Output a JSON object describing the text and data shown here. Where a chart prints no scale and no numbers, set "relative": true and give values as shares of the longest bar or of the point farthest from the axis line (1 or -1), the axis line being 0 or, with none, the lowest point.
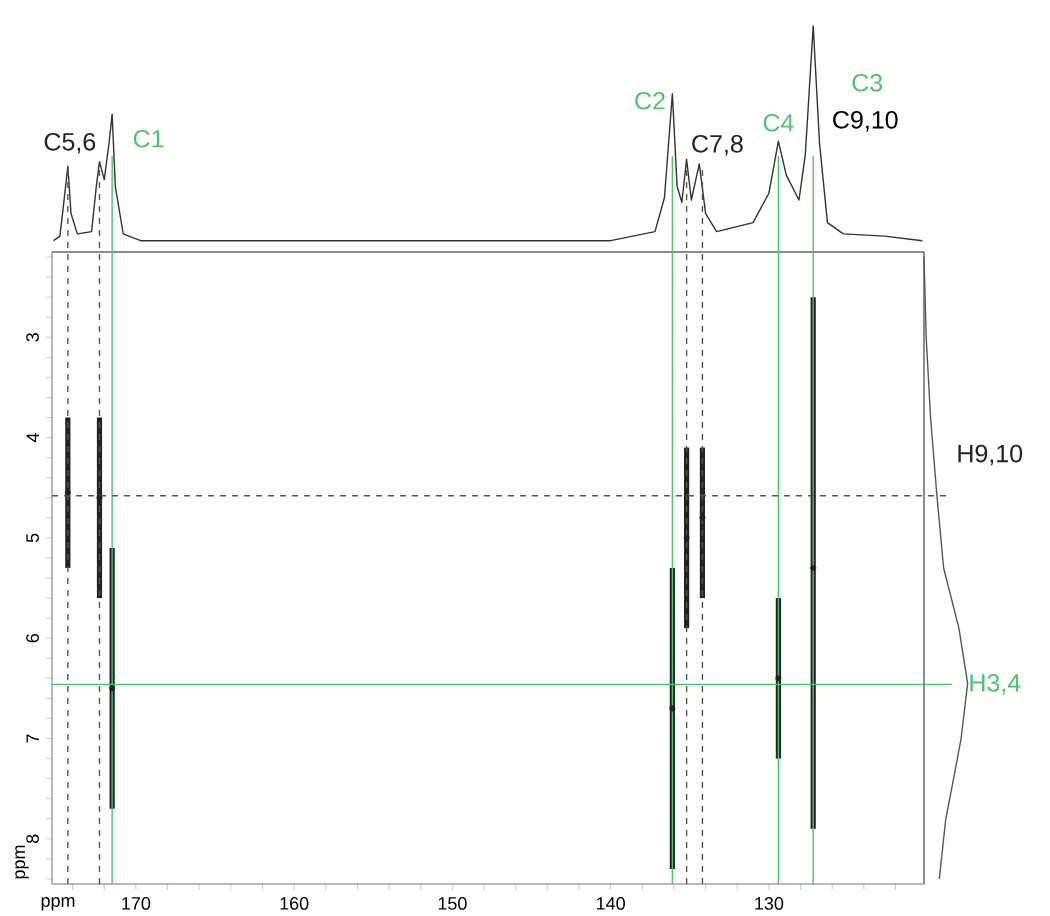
{
  "chart_data": [
    {
      "type": "line",
      "relative": true,
      "color": "#333333",
      "xlim": [
        175.3,
        120.2
      ],
      "tick_labels": false,
      "x": [
        175.2,
        174.8,
        174.6,
        174.3,
        174.1,
        173.7,
        172.8,
        172.5,
        172.3,
        172.0,
        171.7,
        171.5,
        171.3,
        170.8,
        169.7,
        160,
        150,
        140,
        137.2,
        136.6,
        136.1,
        135.8,
        135.5,
        135.2,
        134.9,
        134.4,
        134.0,
        133.3,
        131.0,
        130.0,
        129.4,
        128.9,
        128.1,
        127.7,
        127.2,
        126.8,
        126.3,
        125.3,
        122.7,
        120.3
      ],
      "values": [
        0.05,
        0.07,
        0.19,
        0.38,
        0.17,
        0.08,
        0.09,
        0.29,
        0.4,
        0.32,
        0.48,
        0.61,
        0.29,
        0.08,
        0.05,
        0.05,
        0.05,
        0.05,
        0.09,
        0.24,
        0.7,
        0.29,
        0.22,
        0.41,
        0.23,
        0.39,
        0.17,
        0.09,
        0.13,
        0.26,
        0.49,
        0.34,
        0.23,
        0.43,
        1.0,
        0.48,
        0.13,
        0.08,
        0.07,
        0.05
      ]
    },
    {
      "type": "scatter",
      "color": "#222222",
      "xlabel": "ppm",
      "ylabel": "ppm",
      "xlim": [
        175.3,
        120.2
      ],
      "ylim": [
        8.45,
        2.15
      ],
      "x": [
        174.3,
        172.3,
        171.5,
        136.1,
        135.2,
        134.2,
        129.4,
        127.2
      ],
      "values": [
        4.55,
        4.6,
        6.5,
        6.7,
        5.0,
        4.8,
        6.4,
        5.3
      ],
      "errors": [
        [
          3.8,
          5.3
        ],
        [
          3.8,
          5.6
        ],
        [
          5.1,
          7.7
        ],
        [
          5.3,
          8.3
        ],
        [
          4.1,
          5.9
        ],
        [
          4.1,
          5.6
        ],
        [
          5.6,
          7.2
        ],
        [
          2.6,
          7.9
        ]
      ],
      "xticks": [
        {
          "value": 174,
          "label": null
        },
        {
          "value": 172,
          "label": null
        },
        170,
        {
          "value": 168,
          "label": null
        },
        {
          "value": 166,
          "label": null
        },
        {
          "value": 164,
          "label": null
        },
        {
          "value": 162,
          "label": null
        },
        160,
        {
          "value": 158,
          "label": null
        },
        {
          "value": 156,
          "label": null
        },
        {
          "value": 154,
          "label": null
        },
        {
          "value": 152,
          "label": null
        },
        150,
        {
          "value": 148,
          "label": null
        },
        {
          "value": 146,
          "label": null
        },
        {
          "value": 144,
          "label": null
        },
        {
          "value": 142,
          "label": null
        },
        140,
        {
          "value": 138,
          "label": null
        },
        {
          "value": 136,
          "label": null
        },
        {
          "value": 134,
          "label": null
        },
        {
          "value": 132,
          "label": null
        },
        130,
        {
          "value": 128,
          "label": null
        },
        {
          "value": 126,
          "label": null
        },
        {
          "value": 124,
          "label": null
        },
        {
          "value": 122,
          "label": null
        }
      ],
      "yticks": [
        {
          "value": 2.2,
          "label": null
        },
        {
          "value": 2.4,
          "label": null
        },
        {
          "value": 2.6,
          "label": null
        },
        {
          "value": 2.8,
          "label": null
        },
        3,
        {
          "value": 3.2,
          "label": null
        },
        {
          "value": 3.4,
          "label": null
        },
        {
          "value": 3.6,
          "label": null
        },
        {
          "value": 3.8,
          "label": null
        },
        4,
        {
          "value": 4.2,
          "label": null
        },
        {
          "value": 4.4,
          "label": null
        },
        {
          "value": 4.6,
          "label": null
        },
        {
          "value": 4.8,
          "label": null
        },
        5,
        {
          "value": 5.2,
          "label": null
        },
        {
          "value": 5.4,
          "label": null
        },
        {
          "value": 5.6,
          "label": null
        },
        {
          "value": 5.8,
          "label": null
        },
        6,
        {
          "value": 6.2,
          "label": null
        },
        {
          "value": 6.4,
          "label": null
        },
        {
          "value": 6.6,
          "label": null
        },
        {
          "value": 6.8,
          "label": null
        },
        7,
        {
          "value": 7.2,
          "label": null
        },
        {
          "value": 7.4,
          "label": null
        },
        {
          "value": 7.6,
          "label": null
        },
        {
          "value": 7.8,
          "label": null
        },
        8,
        {
          "value": 8.2,
          "label": null
        },
        {
          "value": 8.4,
          "label": null
        }
      ],
      "ref_lines": [
        {
          "axis": "x",
          "value": 174.3,
          "label": "C5,6",
          "line_style": "dashed"
        },
        {
          "axis": "x",
          "value": 172.3,
          "label": null,
          "line_style": "dashed"
        },
        {
          "axis": "x",
          "value": 171.5,
          "label": "C1",
          "color": "#4cc46a",
          "line_style": "solid"
        },
        {
          "axis": "x",
          "value": 136.1,
          "label": "C2",
          "color": "#4cc46a",
          "line_style": "solid"
        },
        {
          "axis": "x",
          "value": 135.2,
          "label": "C7,8",
          "line_style": "dashed"
        },
        {
          "axis": "x",
          "value": 134.2,
          "label": null,
          "line_style": "dashed"
        },
        {
          "axis": "x",
          "value": 129.4,
          "label": "C4",
          "color": "#4cc46a",
          "line_style": "solid"
        },
        {
          "axis": "x",
          "value": 127.2,
          "label": "C3",
          "color": "#4cc46a",
          "line_style": "solid"
        },
        {
          "axis": "y",
          "value": 4.58,
          "label": "H9,10",
          "line_style": "dashed"
        },
        {
          "axis": "y",
          "value": 6.46,
          "label": "H3,4",
          "color": "#4cc46a",
          "line_style": "solid"
        }
      ],
      "annotations": [
        "C9,10"
      ]
    },
    {
      "type": "line",
      "relative": true,
      "orientation": "horizontal",
      "color": "#555555",
      "ylim": [
        8.45,
        2.15
      ],
      "tick_labels": false,
      "x": [
        2.2,
        3.0,
        3.8,
        4.6,
        5.3,
        5.9,
        6.45,
        7.0,
        7.35,
        7.8,
        8.4
      ],
      "values": [
        0.0,
        0.05,
        0.15,
        0.3,
        0.45,
        0.8,
        1.0,
        0.85,
        0.7,
        0.5,
        0.35
      ]
    }
  ]
}
